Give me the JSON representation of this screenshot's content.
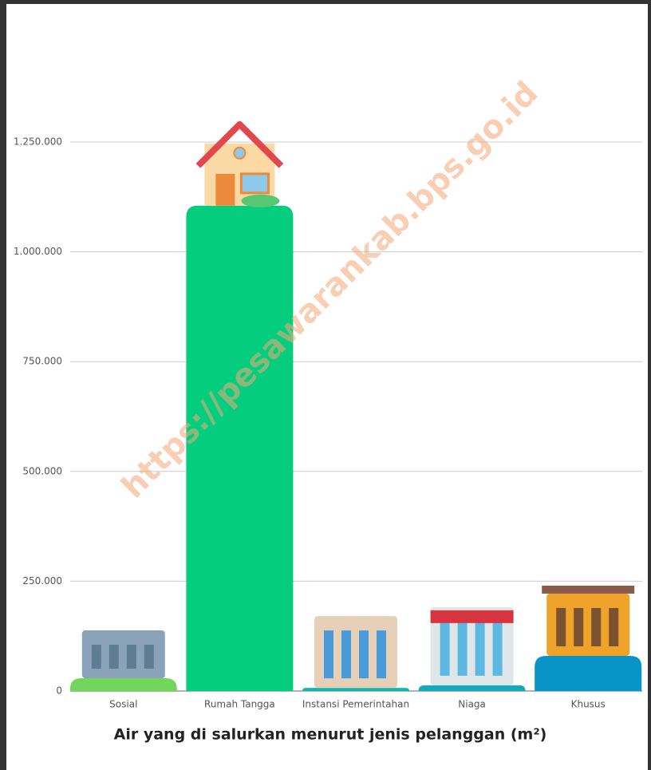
{
  "chart_data": {
    "type": "bar",
    "title": "Air yang di salurkan menurut jenis pelanggan (m²)",
    "watermark": "https://pesawarankab.bps.go.id",
    "categories": [
      "Sosial",
      "Rumah Tangga",
      "Instansi Pemerintahan",
      "Niaga",
      "Khusus"
    ],
    "values": [
      29000,
      1105000,
      7000,
      13000,
      80000
    ],
    "colors": [
      "#72d65a",
      "#05cd7e",
      "#15b6ae",
      "#14a9bd",
      "#0894c6"
    ],
    "ylim": [
      0,
      1250000
    ],
    "yticks": [
      0,
      {
        "value": 250000,
        "label": "250.000"
      },
      {
        "value": 500000,
        "label": "500.000"
      },
      {
        "value": 750000,
        "label": "750.000"
      },
      {
        "value": 1000000,
        "label": "1.000.000"
      },
      {
        "value": 1250000,
        "label": "1.250.000"
      }
    ],
    "grid": true
  }
}
